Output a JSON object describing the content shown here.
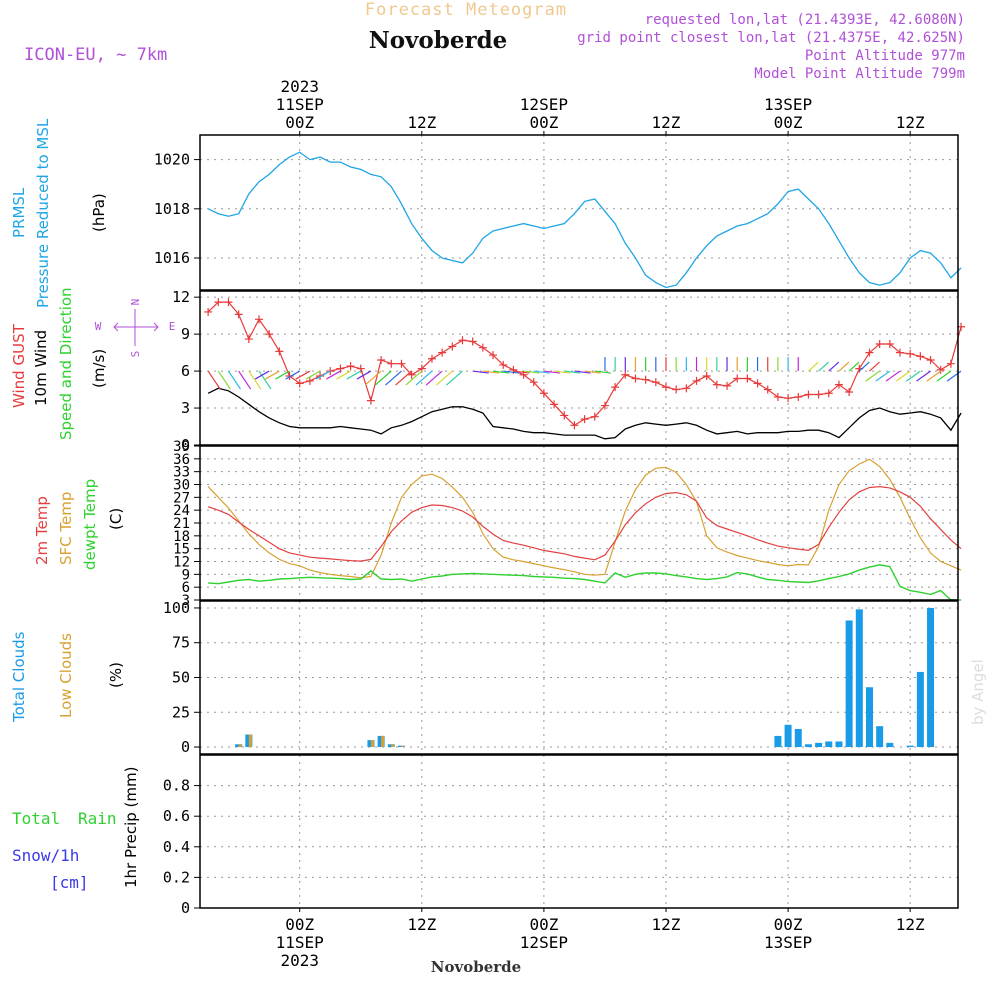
{
  "header": {
    "title": "Forecast Meteogram",
    "location": "Novoberde",
    "model": "ICON-EU, ~ 7km",
    "requested": "requested lon,lat (21.4393E, 42.6080N)",
    "gridpoint": "grid point closest lon,lat (21.4375E, 42.625N)",
    "point_alt": "Point Altitude 977m",
    "model_alt": "Model Point Altitude 799m",
    "footer_location": "Novoberde",
    "credit": "by Angel"
  },
  "time_axis": {
    "ticks": [
      {
        "hour": 0,
        "label": "00Z",
        "date": "11SEP",
        "year": "2023"
      },
      {
        "hour": 12,
        "label": "12Z",
        "date": "",
        "year": ""
      },
      {
        "hour": 24,
        "label": "00Z",
        "date": "12SEP",
        "year": ""
      },
      {
        "hour": 36,
        "label": "12Z",
        "date": "",
        "year": ""
      },
      {
        "hour": 48,
        "label": "00Z",
        "date": "13SEP",
        "year": ""
      },
      {
        "hour": 60,
        "label": "12Z",
        "date": "",
        "year": ""
      }
    ]
  },
  "panel_labels": {
    "prmsl": "PRMSL",
    "prmsl2": "Pressure Reduced to MSL",
    "prmsl_unit": "(hPa)",
    "wind_gust": "Wind GUST",
    "wind_10m": "10m Wind",
    "wind_speed_dir": "Speed and Direction",
    "wind_unit": "(m/s)",
    "compass_n": "N",
    "compass_s": "S",
    "compass_w": "W",
    "compass_e": "E",
    "temp_2m": "2m Temp",
    "temp_sfc": "SFC Temp",
    "temp_dewpt": "dewpt Temp",
    "temp_unit": "(C)",
    "cloud_total": "Total Clouds",
    "cloud_low": "Low Clouds",
    "cloud_unit": "(%)",
    "precip_total": "Total",
    "precip_rain": "Rain",
    "precip_snow": "Snow/1h",
    "precip_cm": "[cm]",
    "precip_axis": "1hr Precip (mm)"
  },
  "colors": {
    "pressure": "#1fa5e6",
    "gust": "#e83a3a",
    "wind": "#000000",
    "t2m": "#e34040",
    "sfc": "#d8a030",
    "dewpt": "#2ed12e",
    "total_cloud": "#1a9be8",
    "low_cloud": "#d8a030",
    "label_purple": "#b050d8",
    "title_orange": "#f0c890"
  },
  "chart_data": [
    {
      "type": "line",
      "title": "PRMSL Pressure Reduced to MSL",
      "ylabel": "(hPa)",
      "ylim": [
        1014.7,
        1021
      ],
      "yticks": [
        1016,
        1018,
        1020
      ],
      "x_hours": [
        -9,
        -8,
        -7,
        -6,
        -5,
        -4,
        -3,
        -2,
        -1,
        0,
        1,
        2,
        3,
        4,
        5,
        6,
        7,
        8,
        9,
        10,
        11,
        12,
        13,
        14,
        15,
        16,
        17,
        18,
        19,
        20,
        21,
        22,
        23,
        24,
        25,
        26,
        27,
        28,
        29,
        30,
        31,
        32,
        33,
        34,
        35,
        36,
        37,
        38,
        39,
        40,
        41,
        42,
        43,
        44,
        45,
        46,
        47,
        48,
        49,
        50,
        51,
        52,
        53,
        54,
        55,
        56,
        57,
        58,
        59,
        60,
        61,
        62,
        63,
        64,
        65
      ],
      "values": [
        1018.0,
        1017.8,
        1017.7,
        1017.8,
        1018.6,
        1019.1,
        1019.4,
        1019.8,
        1020.1,
        1020.3,
        1020.0,
        1020.1,
        1019.9,
        1019.9,
        1019.7,
        1019.6,
        1019.4,
        1019.3,
        1018.9,
        1018.2,
        1017.4,
        1016.8,
        1016.3,
        1016.0,
        1015.9,
        1015.8,
        1016.2,
        1016.8,
        1017.1,
        1017.2,
        1017.3,
        1017.4,
        1017.3,
        1017.2,
        1017.3,
        1017.4,
        1017.8,
        1018.3,
        1018.4,
        1017.9,
        1017.4,
        1016.6,
        1016.0,
        1015.3,
        1015.0,
        1014.8,
        1014.9,
        1015.4,
        1016.0,
        1016.5,
        1016.9,
        1017.1,
        1017.3,
        1017.4,
        1017.6,
        1017.8,
        1018.2,
        1018.7,
        1018.8,
        1018.4,
        1018.0,
        1017.4,
        1016.7,
        1016.0,
        1015.4,
        1015.0,
        1014.9,
        1015.0,
        1015.4,
        1016.0,
        1016.3,
        1016.2,
        1015.8,
        1015.2,
        1015.6
      ],
      "series": [
        {
          "name": "PRMSL"
        }
      ]
    },
    {
      "type": "line",
      "title": "Wind GUST / 10m Wind Speed and Direction",
      "ylabel": "(m/s)",
      "ylim": [
        0,
        12.5
      ],
      "yticks": [
        0,
        3,
        6,
        9,
        12
      ],
      "x_hours": [
        -9,
        -8,
        -7,
        -6,
        -5,
        -4,
        -3,
        -2,
        -1,
        0,
        1,
        2,
        3,
        4,
        5,
        6,
        7,
        8,
        9,
        10,
        11,
        12,
        13,
        14,
        15,
        16,
        17,
        18,
        19,
        20,
        21,
        22,
        23,
        24,
        25,
        26,
        27,
        28,
        29,
        30,
        31,
        32,
        33,
        34,
        35,
        36,
        37,
        38,
        39,
        40,
        41,
        42,
        43,
        44,
        45,
        46,
        47,
        48,
        49,
        50,
        51,
        52,
        53,
        54,
        55,
        56,
        57,
        58,
        59,
        60,
        61,
        62,
        63,
        64,
        65
      ],
      "series": [
        {
          "name": "Wind GUST",
          "values": [
            10.8,
            11.6,
            11.6,
            10.6,
            8.6,
            10.2,
            9.0,
            7.6,
            5.6,
            5.0,
            5.2,
            5.6,
            6.0,
            6.2,
            6.4,
            6.2,
            3.6,
            6.9,
            6.6,
            6.6,
            5.7,
            6.2,
            7.0,
            7.5,
            8.0,
            8.5,
            8.4,
            7.9,
            7.3,
            6.5,
            6.1,
            5.7,
            5.1,
            4.2,
            3.3,
            2.4,
            1.6,
            2.1,
            2.3,
            3.2,
            4.7,
            5.7,
            5.4,
            5.3,
            5.1,
            4.7,
            4.5,
            4.6,
            5.2,
            5.6,
            4.9,
            4.8,
            5.4,
            5.4,
            5.0,
            4.5,
            3.9,
            3.8,
            3.9,
            4.1,
            4.1,
            4.2,
            4.9,
            4.3,
            6.2,
            7.5,
            8.2,
            8.2,
            7.5,
            7.4,
            7.2,
            6.9,
            6.1,
            6.6,
            9.6
          ]
        },
        {
          "name": "10m Wind",
          "values": [
            4.2,
            4.6,
            4.4,
            3.9,
            3.3,
            2.7,
            2.2,
            1.8,
            1.5,
            1.4,
            1.4,
            1.4,
            1.4,
            1.5,
            1.4,
            1.3,
            1.2,
            0.9,
            1.4,
            1.6,
            1.9,
            2.3,
            2.7,
            2.9,
            3.1,
            3.1,
            2.9,
            2.6,
            1.5,
            1.4,
            1.3,
            1.1,
            1.0,
            1.0,
            0.9,
            0.8,
            0.8,
            0.8,
            0.8,
            0.5,
            0.6,
            1.3,
            1.6,
            1.8,
            1.7,
            1.6,
            1.7,
            1.8,
            1.6,
            1.2,
            0.9,
            1.0,
            1.1,
            0.9,
            1.0,
            1.0,
            1.0,
            1.1,
            1.1,
            1.2,
            1.2,
            1.0,
            0.6,
            1.4,
            2.2,
            2.8,
            3.0,
            2.7,
            2.5,
            2.6,
            2.7,
            2.5,
            2.2,
            1.2,
            2.6
          ]
        }
      ]
    },
    {
      "type": "line",
      "title": "2m Temp / SFC Temp / dewpt Temp",
      "ylabel": "(C)",
      "ylim": [
        3,
        39
      ],
      "yticks": [
        3,
        6,
        9,
        12,
        15,
        18,
        21,
        24,
        27,
        30,
        33,
        36,
        39
      ],
      "x_hours": [
        -9,
        -8,
        -7,
        -6,
        -5,
        -4,
        -3,
        -2,
        -1,
        0,
        1,
        2,
        3,
        4,
        5,
        6,
        7,
        8,
        9,
        10,
        11,
        12,
        13,
        14,
        15,
        16,
        17,
        18,
        19,
        20,
        21,
        22,
        23,
        24,
        25,
        26,
        27,
        28,
        29,
        30,
        31,
        32,
        33,
        34,
        35,
        36,
        37,
        38,
        39,
        40,
        41,
        42,
        43,
        44,
        45,
        46,
        47,
        48,
        49,
        50,
        51,
        52,
        53,
        54,
        55,
        56,
        57,
        58,
        59,
        60,
        61,
        62,
        63,
        64,
        65
      ],
      "series": [
        {
          "name": "2m Temp",
          "values": [
            24.8,
            24.0,
            23.0,
            21.2,
            19.5,
            18.0,
            16.5,
            15.0,
            14.0,
            13.5,
            13.0,
            12.8,
            12.6,
            12.4,
            12.2,
            12.1,
            12.5,
            15.5,
            19.0,
            21.5,
            23.5,
            24.6,
            25.2,
            25.1,
            24.6,
            23.8,
            22.4,
            20.2,
            18.4,
            16.9,
            16.3,
            15.8,
            15.2,
            14.6,
            14.2,
            13.8,
            13.2,
            12.8,
            12.4,
            13.5,
            16.8,
            20.6,
            23.4,
            25.5,
            27.0,
            27.9,
            28.1,
            27.6,
            26.1,
            22.2,
            20.4,
            19.6,
            18.8,
            18.0,
            17.1,
            16.3,
            15.6,
            15.2,
            14.9,
            14.6,
            16.0,
            20.0,
            23.5,
            26.4,
            28.3,
            29.3,
            29.5,
            29.2,
            28.3,
            27.0,
            24.9,
            22.0,
            19.5,
            17.0,
            15.0
          ]
        },
        {
          "name": "SFC Temp",
          "values": [
            29.5,
            27.0,
            24.5,
            21.5,
            18.5,
            16.0,
            14.0,
            12.5,
            11.5,
            11.0,
            10.0,
            9.4,
            9.0,
            8.7,
            8.5,
            8.2,
            8.5,
            13.5,
            21.0,
            27.0,
            30.0,
            32.0,
            32.4,
            31.4,
            29.4,
            27.0,
            23.5,
            18.5,
            15.0,
            13.0,
            12.4,
            12.0,
            11.5,
            11.0,
            10.5,
            10.1,
            9.6,
            9.0,
            8.8,
            9.0,
            16.6,
            23.8,
            28.8,
            32.2,
            33.8,
            34.0,
            32.8,
            30.0,
            26.0,
            18.0,
            15.2,
            14.2,
            13.4,
            12.8,
            12.2,
            11.8,
            11.3,
            11.0,
            11.3,
            11.2,
            15.5,
            24.0,
            30.0,
            33.2,
            34.8,
            35.9,
            34.2,
            31.2,
            27.0,
            22.0,
            17.5,
            14.0,
            12.0,
            11.0,
            10.0
          ]
        },
        {
          "name": "dewpt Temp",
          "values": [
            7.0,
            6.8,
            7.2,
            7.6,
            7.8,
            7.4,
            7.6,
            7.9,
            8.0,
            8.2,
            8.3,
            8.2,
            8.1,
            8.0,
            7.8,
            7.9,
            9.8,
            7.9,
            7.8,
            7.9,
            7.4,
            7.9,
            8.4,
            8.6,
            9.0,
            9.1,
            9.2,
            9.1,
            9.0,
            8.9,
            8.8,
            8.7,
            8.5,
            8.4,
            8.3,
            8.1,
            8.0,
            7.8,
            7.4,
            7.0,
            9.3,
            8.3,
            9.0,
            9.3,
            9.3,
            9.1,
            8.7,
            8.4,
            8.0,
            7.8,
            8.0,
            8.4,
            9.4,
            9.1,
            8.4,
            7.8,
            7.6,
            7.3,
            7.2,
            7.1,
            7.5,
            8.0,
            8.5,
            9.1,
            10.0,
            10.7,
            11.2,
            10.8,
            6.2,
            5.2,
            4.8,
            4.3,
            5.2,
            3.0,
            3.0
          ]
        }
      ]
    },
    {
      "type": "bar",
      "title": "Total Clouds / Low Clouds",
      "ylabel": "(%)",
      "ylim": [
        -5,
        105
      ],
      "yticks": [
        0,
        25,
        50,
        75,
        100
      ],
      "x_hours": [
        -6,
        -5,
        7,
        8,
        9,
        10,
        11,
        12,
        13,
        14,
        15,
        16,
        47,
        48,
        49,
        50,
        51,
        52,
        53,
        54,
        55,
        56,
        57,
        58,
        59,
        60,
        61,
        62,
        63,
        64,
        65
      ],
      "series": [
        {
          "name": "Total Clouds",
          "values": [
            2,
            9,
            5,
            8,
            2,
            1,
            0,
            0,
            0,
            0,
            0,
            0,
            8,
            16,
            13,
            2,
            3,
            4,
            4,
            91,
            99,
            43,
            15,
            3,
            0,
            1,
            54,
            100,
            0,
            0,
            0
          ]
        },
        {
          "name": "Low Clouds",
          "values": [
            2,
            9,
            5,
            8,
            2,
            1,
            0,
            0,
            0,
            0,
            0,
            0,
            0,
            0,
            0,
            0,
            0,
            0,
            0,
            0,
            0,
            0,
            0,
            0,
            0,
            0,
            0,
            0,
            0,
            0,
            0
          ]
        }
      ]
    },
    {
      "type": "bar",
      "title": "Total Rain / Snow/1h",
      "ylabel": "1hr Precip (mm)",
      "ylim": [
        0,
        1.0
      ],
      "yticks": [
        0,
        0.2,
        0.4,
        0.6,
        0.8
      ],
      "series": [
        {
          "name": "Total Rain",
          "values": []
        }
      ]
    }
  ]
}
